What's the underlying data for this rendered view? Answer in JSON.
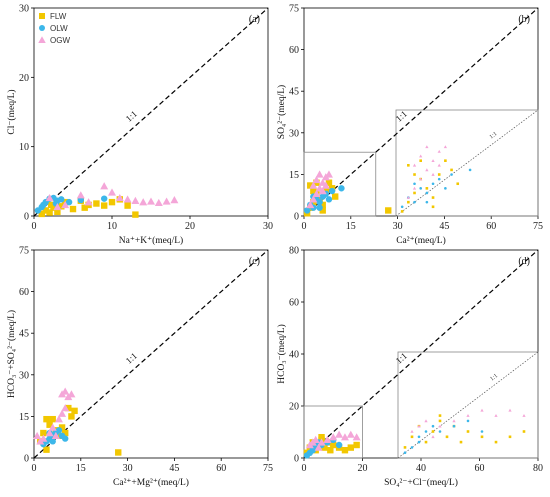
{
  "colors": {
    "FLW": "#f2c700",
    "OLW": "#3cb7ea",
    "OGW": "#f4a6d8"
  },
  "legend": [
    {
      "name": "FLW",
      "marker": "square"
    },
    {
      "name": "OLW",
      "marker": "circle"
    },
    {
      "name": "OGW",
      "marker": "triangle"
    }
  ],
  "chart_data": [
    {
      "type": "scatter",
      "panel": "(a)",
      "xlabel": "Na⁺+K⁺(meq/L)",
      "ylabel": "Cl⁻(meq/L)",
      "xlim": [
        0,
        30
      ],
      "ylim": [
        0,
        30
      ],
      "xticks": [
        "0",
        "10",
        "20",
        "30"
      ],
      "yticks": [
        "0",
        "10",
        "20",
        "30"
      ],
      "ref_label": "1:1",
      "show_legend": true,
      "series": [
        {
          "name": "FLW",
          "points": [
            [
              1.0,
              0.3
            ],
            [
              1.5,
              0.8
            ],
            [
              2.0,
              0.5
            ],
            [
              2.5,
              1.2
            ],
            [
              3.0,
              0.6
            ],
            [
              2.2,
              1.6
            ],
            [
              4.0,
              2.0
            ],
            [
              5.0,
              1.0
            ],
            [
              6.0,
              2.2
            ],
            [
              7.0,
              1.6
            ],
            [
              8.0,
              1.8
            ],
            [
              9.0,
              1.5
            ],
            [
              10.0,
              2.0
            ],
            [
              11.0,
              2.4
            ],
            [
              12.0,
              1.5
            ],
            [
              13.0,
              0.2
            ],
            [
              6.5,
              1.2
            ],
            [
              3.5,
              1.4
            ]
          ]
        },
        {
          "name": "OLW",
          "points": [
            [
              0.5,
              0.8
            ],
            [
              1.0,
              1.3
            ],
            [
              1.5,
              2.0
            ],
            [
              2.0,
              2.5
            ],
            [
              2.5,
              2.6
            ],
            [
              3.0,
              2.2
            ],
            [
              3.5,
              2.4
            ],
            [
              1.2,
              1.6
            ],
            [
              2.8,
              1.8
            ],
            [
              6.0,
              2.3
            ],
            [
              9.0,
              2.5
            ],
            [
              4.5,
              2.0
            ]
          ]
        },
        {
          "name": "OGW",
          "points": [
            [
              2.0,
              2.6
            ],
            [
              3.0,
              1.3
            ],
            [
              4.0,
              1.6
            ],
            [
              6.0,
              3.0
            ],
            [
              9.0,
              4.3
            ],
            [
              10.0,
              3.4
            ],
            [
              11.0,
              2.6
            ],
            [
              12.0,
              2.4
            ],
            [
              13.0,
              2.2
            ],
            [
              14.0,
              2.0
            ],
            [
              15.0,
              2.1
            ],
            [
              16.0,
              1.9
            ],
            [
              17.0,
              2.1
            ],
            [
              18.0,
              2.3
            ],
            [
              7.0,
              2.0
            ]
          ]
        }
      ]
    },
    {
      "type": "scatter",
      "panel": "(b)",
      "xlabel": "Ca²⁺(meq/L)",
      "ylabel": "SO₄²⁻(meq/L)",
      "xlim": [
        0,
        75
      ],
      "ylim": [
        0,
        75
      ],
      "xticks": [
        "0",
        "15",
        "30",
        "45",
        "60",
        "75"
      ],
      "yticks": [
        "0",
        "15",
        "30",
        "45",
        "60",
        "75"
      ],
      "ref_label": "1:1",
      "zoom_box": [
        0,
        23,
        0,
        23
      ],
      "inset_ref_label": "1:1",
      "series": [
        {
          "name": "FLW",
          "points": [
            [
              1.0,
              1.0
            ],
            [
              2.0,
              3.0
            ],
            [
              3.0,
              5.0
            ],
            [
              4.0,
              8.0
            ],
            [
              5.0,
              6.0
            ],
            [
              6.0,
              4.0
            ],
            [
              7.0,
              9.0
            ],
            [
              8.0,
              12.0
            ],
            [
              9.0,
              10.0
            ],
            [
              10.0,
              7.0
            ],
            [
              3.0,
              9.0
            ],
            [
              2.0,
              11.0
            ],
            [
              4.0,
              12.0
            ],
            [
              27.0,
              2.0
            ],
            [
              6.0,
              2.0
            ]
          ]
        },
        {
          "name": "OLW",
          "points": [
            [
              1.0,
              2.0
            ],
            [
              2.0,
              4.0
            ],
            [
              3.0,
              3.0
            ],
            [
              4.0,
              6.0
            ],
            [
              5.0,
              5.0
            ],
            [
              6.0,
              7.0
            ],
            [
              7.0,
              8.0
            ],
            [
              9.0,
              9.0
            ],
            [
              12.0,
              10.0
            ],
            [
              3.0,
              7.0
            ],
            [
              5.0,
              3.0
            ],
            [
              8.0,
              6.0
            ]
          ]
        },
        {
          "name": "OGW",
          "points": [
            [
              2.0,
              4.0
            ],
            [
              3.0,
              6.0
            ],
            [
              4.0,
              8.0
            ],
            [
              5.0,
              10.0
            ],
            [
              6.0,
              12.0
            ],
            [
              7.0,
              14.0
            ],
            [
              8.0,
              15.0
            ],
            [
              5.0,
              15.0
            ],
            [
              4.0,
              13.0
            ],
            [
              3.0,
              11.0
            ],
            [
              6.0,
              9.0
            ],
            [
              7.0,
              11.0
            ]
          ]
        }
      ]
    },
    {
      "type": "scatter",
      "panel": "(c)",
      "xlabel": "Ca²⁺+Mg²⁺(meq/L)",
      "ylabel": "HCO₃⁻+SO₄²⁻(meq/L)",
      "xlim": [
        0,
        75
      ],
      "ylim": [
        0,
        75
      ],
      "xticks": [
        "0",
        "15",
        "30",
        "45",
        "60",
        "75"
      ],
      "yticks": [
        "0",
        "15",
        "30",
        "45",
        "60",
        "75"
      ],
      "ref_label": "1:1",
      "series": [
        {
          "name": "FLW",
          "points": [
            [
              2.0,
              6.0
            ],
            [
              3.0,
              9.0
            ],
            [
              4.0,
              14.0
            ],
            [
              5.0,
              12.0
            ],
            [
              6.0,
              14.0
            ],
            [
              7.0,
              10.0
            ],
            [
              8.0,
              8.0
            ],
            [
              9.0,
              11.0
            ],
            [
              10.0,
              9.0
            ],
            [
              11.0,
              18.0
            ],
            [
              12.0,
              15.0
            ],
            [
              13.0,
              17.0
            ],
            [
              4.0,
              3.0
            ],
            [
              27.0,
              2.0
            ]
          ]
        },
        {
          "name": "OLW",
          "points": [
            [
              3.0,
              5.0
            ],
            [
              4.0,
              6.0
            ],
            [
              5.0,
              7.0
            ],
            [
              6.0,
              8.0
            ],
            [
              7.0,
              9.0
            ],
            [
              8.0,
              10.0
            ],
            [
              9.0,
              8.0
            ],
            [
              10.0,
              7.0
            ],
            [
              5.0,
              9.0
            ],
            [
              6.0,
              6.0
            ]
          ]
        },
        {
          "name": "OGW",
          "points": [
            [
              1.0,
              8.0
            ],
            [
              2.0,
              6.0
            ],
            [
              3.0,
              7.0
            ],
            [
              5.0,
              9.0
            ],
            [
              6.0,
              11.0
            ],
            [
              8.0,
              14.0
            ],
            [
              9.0,
              16.0
            ],
            [
              9.0,
              23.0
            ],
            [
              10.0,
              24.0
            ],
            [
              11.0,
              22.0
            ],
            [
              12.0,
              23.0
            ],
            [
              10.0,
              18.0
            ],
            [
              7.0,
              8.0
            ]
          ]
        }
      ]
    },
    {
      "type": "scatter",
      "panel": "(d)",
      "xlabel": "SO₄²⁻+Cl⁻(meq/L)",
      "ylabel": "HCO₃⁻(meq/L)",
      "xlim": [
        0,
        80
      ],
      "ylim": [
        0,
        80
      ],
      "xticks": [
        "0",
        "20",
        "40",
        "60",
        "80"
      ],
      "yticks": [
        "0",
        "20",
        "40",
        "60",
        "80"
      ],
      "ref_label": "1:1",
      "zoom_box": [
        0,
        20,
        0,
        20
      ],
      "inset_ref_label": "1:1",
      "series": [
        {
          "name": "FLW",
          "points": [
            [
              1.0,
              2.0
            ],
            [
              2.0,
              4.0
            ],
            [
              3.0,
              6.0
            ],
            [
              4.0,
              3.0
            ],
            [
              5.0,
              5.0
            ],
            [
              6.0,
              7.0
            ],
            [
              7.0,
              4.0
            ],
            [
              8.0,
              6.0
            ],
            [
              9.0,
              3.0
            ],
            [
              10.0,
              5.0
            ],
            [
              12.0,
              4.0
            ],
            [
              14.0,
              3.0
            ],
            [
              16.0,
              4.0
            ],
            [
              18.0,
              5.0
            ],
            [
              6.0,
              8.0
            ]
          ]
        },
        {
          "name": "OLW",
          "points": [
            [
              1.0,
              1.0
            ],
            [
              2.0,
              2.0
            ],
            [
              3.0,
              4.0
            ],
            [
              4.0,
              5.0
            ],
            [
              5.0,
              6.0
            ],
            [
              6.0,
              5.0
            ],
            [
              8.0,
              6.0
            ],
            [
              10.0,
              7.0
            ],
            [
              12.0,
              5.0
            ],
            [
              3.0,
              3.0
            ]
          ]
        },
        {
          "name": "OGW",
          "points": [
            [
              2.0,
              5.0
            ],
            [
              3.0,
              6.0
            ],
            [
              4.0,
              7.0
            ],
            [
              6.0,
              6.0
            ],
            [
              8.0,
              7.0
            ],
            [
              10.0,
              8.0
            ],
            [
              12.0,
              9.0
            ],
            [
              14.0,
              8.0
            ],
            [
              16.0,
              9.0
            ],
            [
              18.0,
              8.0
            ],
            [
              5.0,
              4.0
            ]
          ]
        }
      ]
    }
  ]
}
